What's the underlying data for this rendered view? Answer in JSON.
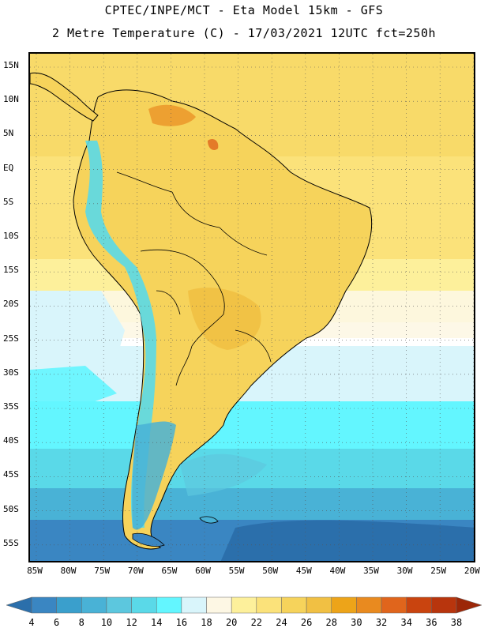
{
  "header": {
    "line1": "CPTEC/INPE/MCT -  Eta Model 15km - GFS",
    "line2": "2 Metre Temperature (C) - 17/03/2021 12UTC fct=250h"
  },
  "map": {
    "lat_labels": [
      "15N",
      "10N",
      "5N",
      "EQ",
      "5S",
      "10S",
      "15S",
      "20S",
      "25S",
      "30S",
      "35S",
      "40S",
      "45S",
      "50S",
      "55S"
    ],
    "lon_labels": [
      "85W",
      "80W",
      "75W",
      "70W",
      "65W",
      "60W",
      "55W",
      "50W",
      "45W",
      "40W",
      "35W",
      "30W",
      "25W",
      "20W"
    ]
  },
  "legend": {
    "levels": [
      "4",
      "6",
      "8",
      "10",
      "12",
      "14",
      "16",
      "18",
      "20",
      "22",
      "24",
      "26",
      "28",
      "30",
      "32",
      "34",
      "36",
      "38"
    ],
    "colors": [
      "#2b6fab",
      "#3a86c2",
      "#3a9fcc",
      "#49b2d6",
      "#5cc7de",
      "#5ad9e8",
      "#63f6ff",
      "#d9f5fb",
      "#fdf7e4",
      "#fdf09b",
      "#fbe27a",
      "#f6d35b",
      "#f1c043",
      "#eda419",
      "#e98a1f",
      "#e0651c",
      "#c9440f",
      "#b8350d",
      "#9c2708"
    ]
  }
}
